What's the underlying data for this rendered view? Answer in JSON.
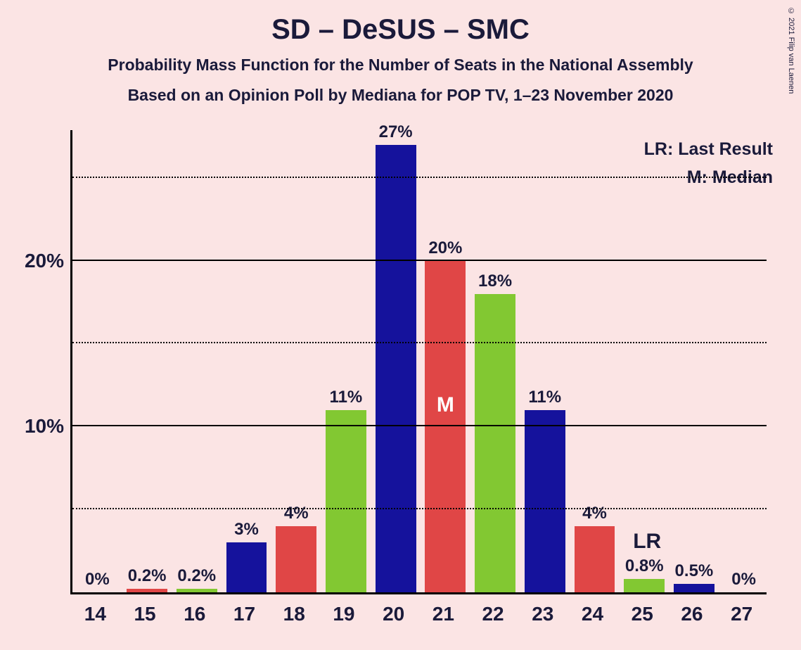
{
  "title": "SD – DeSUS – SMC",
  "subtitle1": "Probability Mass Function for the Number of Seats in the National Assembly",
  "subtitle2": "Based on an Opinion Poll by Mediana for POP TV, 1–23 November 2020",
  "copyright": "© 2021 Filip van Laenen",
  "legend": {
    "lr": "LR: Last Result",
    "m": "M: Median"
  },
  "chart": {
    "type": "bar",
    "background_color": "#fbe4e4",
    "text_color": "#1a1a3a",
    "colors": {
      "blue": "#15129c",
      "red": "#e04646",
      "green": "#82c832"
    },
    "ylim": [
      0,
      28
    ],
    "y_major_ticks": [
      10,
      20
    ],
    "y_minor_ticks": [
      5,
      15,
      25
    ],
    "y_tick_labels": {
      "10": "10%",
      "20": "20%"
    },
    "categories": [
      14,
      15,
      16,
      17,
      18,
      19,
      20,
      21,
      22,
      23,
      24,
      25,
      26,
      27
    ],
    "bars": [
      {
        "x": 14,
        "value": 0,
        "label": "0%",
        "color": "blue"
      },
      {
        "x": 15,
        "value": 0.2,
        "label": "0.2%",
        "color": "red"
      },
      {
        "x": 16,
        "value": 0.2,
        "label": "0.2%",
        "color": "green"
      },
      {
        "x": 17,
        "value": 3,
        "label": "3%",
        "color": "blue"
      },
      {
        "x": 18,
        "value": 4,
        "label": "4%",
        "color": "red"
      },
      {
        "x": 19,
        "value": 11,
        "label": "11%",
        "color": "green"
      },
      {
        "x": 20,
        "value": 27,
        "label": "27%",
        "color": "blue"
      },
      {
        "x": 21,
        "value": 20,
        "label": "20%",
        "color": "red",
        "inlabel": "M"
      },
      {
        "x": 22,
        "value": 18,
        "label": "18%",
        "color": "green"
      },
      {
        "x": 23,
        "value": 11,
        "label": "11%",
        "color": "blue"
      },
      {
        "x": 24,
        "value": 4,
        "label": "4%",
        "color": "red"
      },
      {
        "x": 25,
        "value": 0.8,
        "label": "0.8%",
        "color": "green",
        "annotate": "LR"
      },
      {
        "x": 26,
        "value": 0.5,
        "label": "0.5%",
        "color": "blue"
      },
      {
        "x": 27,
        "value": 0,
        "label": "0%",
        "color": "red"
      }
    ],
    "bar_width_ratio": 0.82,
    "title_fontsize": 40,
    "subtitle_fontsize": 23,
    "axis_fontsize": 28,
    "barlabel_fontsize": 24
  }
}
